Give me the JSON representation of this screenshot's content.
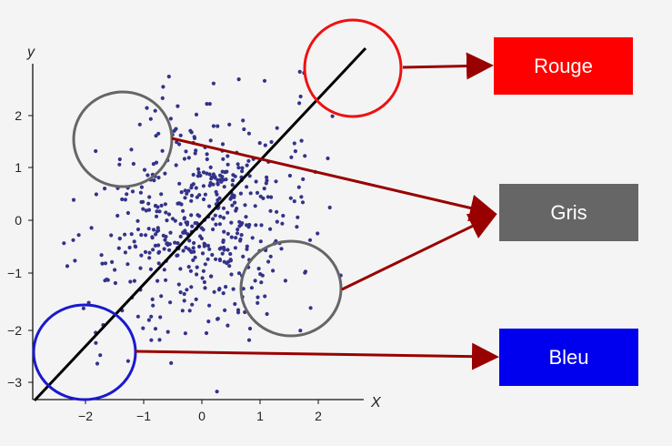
{
  "axes": {
    "x_label": "X",
    "y_label": "y",
    "x_ticks": [
      "−2",
      "−1",
      "0",
      "1",
      "2"
    ],
    "y_ticks": [
      "2",
      "1",
      "0",
      "−1",
      "−2",
      "−3"
    ]
  },
  "labels": {
    "rouge": "Rouge",
    "gris": "Gris",
    "bleu": "Bleu"
  },
  "colors": {
    "rouge_box": "#ff0000",
    "gris_box": "#666666",
    "bleu_box": "#0000ee",
    "rouge_circle": "#ee1111",
    "gris_circle": "#666666",
    "bleu_circle": "#1a1acc",
    "arrow": "#990000",
    "points": "#33338a",
    "regression_line": "#000000"
  },
  "regression_line": {
    "from": [
      -3.0,
      -3.05
    ],
    "to": [
      2.75,
      2.95
    ]
  },
  "annotated_regions": [
    {
      "name": "rouge",
      "center": [
        2.05,
        2.65
      ],
      "target": "Rouge"
    },
    {
      "name": "gris-upper",
      "center": [
        -1.3,
        1.45
      ],
      "target": "Gris"
    },
    {
      "name": "gris-lower",
      "center": [
        1.5,
        -1.25
      ],
      "target": "Gris"
    },
    {
      "name": "bleu",
      "center": [
        -2.5,
        -2.45
      ],
      "target": "Bleu"
    }
  ]
}
